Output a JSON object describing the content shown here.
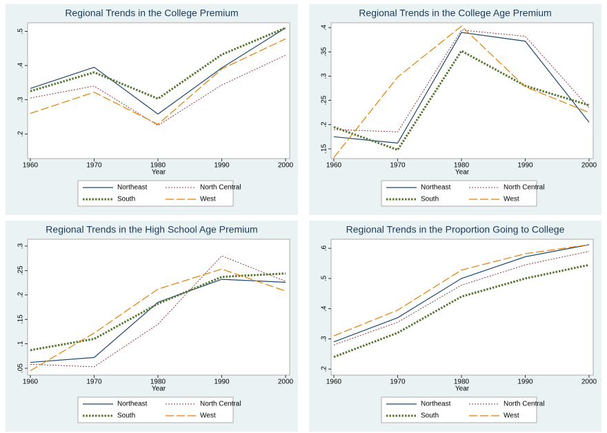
{
  "chart_data": [
    {
      "type": "line",
      "title": "Regional Trends in the College Premium",
      "x_label": "Year",
      "x": [
        1960,
        1970,
        1980,
        1990,
        2000
      ],
      "xlim": [
        1960,
        2000
      ],
      "xticks": [
        1960,
        1970,
        1980,
        1990,
        2000
      ],
      "ylim": [
        0.128,
        0.525
      ],
      "yticks": [
        {
          "value": 0.2,
          "label": ".2"
        },
        {
          "value": 0.3,
          "label": ".3"
        },
        {
          "value": 0.4,
          "label": ".4"
        },
        {
          "value": 0.5,
          "label": ".5"
        }
      ],
      "series": [
        {
          "name": "Northeast",
          "color": "#1a476f",
          "style": "solid",
          "values": [
            0.333,
            0.395,
            0.258,
            0.393,
            0.51
          ]
        },
        {
          "name": "North Central",
          "color": "#90353b",
          "style": "dot",
          "values": [
            0.305,
            0.34,
            0.225,
            0.343,
            0.43
          ]
        },
        {
          "name": "South",
          "color": "#55752f",
          "style": "heavy-dot",
          "values": [
            0.325,
            0.38,
            0.303,
            0.432,
            0.51
          ]
        },
        {
          "name": "West",
          "color": "#e37e00",
          "style": "long-dash",
          "values": [
            0.26,
            0.322,
            0.228,
            0.39,
            0.478
          ]
        }
      ]
    },
    {
      "type": "line",
      "title": "Regional Trends in the College Age Premium",
      "x_label": "Year",
      "x": [
        1960,
        1970,
        1980,
        1990,
        2000
      ],
      "xlim": [
        1960,
        2000
      ],
      "xticks": [
        1960,
        1970,
        1980,
        1990,
        2000
      ],
      "ylim": [
        0.13,
        0.41
      ],
      "yticks": [
        {
          "value": 0.15,
          "label": ".15"
        },
        {
          "value": 0.2,
          "label": ".2"
        },
        {
          "value": 0.25,
          "label": ".25"
        },
        {
          "value": 0.3,
          "label": ".3"
        },
        {
          "value": 0.35,
          "label": ".35"
        },
        {
          "value": 0.4,
          "label": ".4"
        }
      ],
      "series": [
        {
          "name": "Northeast",
          "color": "#1a476f",
          "style": "solid",
          "values": [
            0.175,
            0.162,
            0.39,
            0.372,
            0.205
          ]
        },
        {
          "name": "North Central",
          "color": "#90353b",
          "style": "dot",
          "values": [
            0.19,
            0.185,
            0.395,
            0.382,
            0.235
          ]
        },
        {
          "name": "South",
          "color": "#55752f",
          "style": "heavy-dot",
          "values": [
            0.195,
            0.148,
            0.352,
            0.28,
            0.24
          ]
        },
        {
          "name": "West",
          "color": "#e37e00",
          "style": "long-dash",
          "values": [
            0.132,
            0.298,
            0.403,
            0.278,
            0.225
          ]
        }
      ]
    },
    {
      "type": "line",
      "title": "Regional Trends in the High School Age Premium",
      "x_label": "Year",
      "x": [
        1960,
        1970,
        1980,
        1990,
        2000
      ],
      "xlim": [
        1960,
        2000
      ],
      "xticks": [
        1960,
        1970,
        1980,
        1990,
        2000
      ],
      "ylim": [
        0.036,
        0.314
      ],
      "yticks": [
        {
          "value": 0.05,
          "label": ".05"
        },
        {
          "value": 0.1,
          "label": ".1"
        },
        {
          "value": 0.15,
          "label": ".15"
        },
        {
          "value": 0.2,
          "label": ".2"
        },
        {
          "value": 0.25,
          "label": ".25"
        },
        {
          "value": 0.3,
          "label": ".3"
        }
      ],
      "series": [
        {
          "name": "Northeast",
          "color": "#1a476f",
          "style": "solid",
          "values": [
            0.062,
            0.072,
            0.185,
            0.232,
            0.226
          ]
        },
        {
          "name": "North Central",
          "color": "#90353b",
          "style": "dot",
          "values": [
            0.058,
            0.053,
            0.14,
            0.28,
            0.228
          ]
        },
        {
          "name": "South",
          "color": "#55752f",
          "style": "heavy-dot",
          "values": [
            0.087,
            0.11,
            0.182,
            0.237,
            0.244
          ]
        },
        {
          "name": "West",
          "color": "#e37e00",
          "style": "long-dash",
          "values": [
            0.045,
            0.122,
            0.212,
            0.253,
            0.208
          ]
        }
      ]
    },
    {
      "type": "line",
      "title": "Regional Trends in the Proportion Going to College",
      "x_label": "Year",
      "x": [
        1960,
        1970,
        1980,
        1990,
        2000
      ],
      "xlim": [
        1960,
        2000
      ],
      "xticks": [
        1960,
        1970,
        1980,
        1990,
        2000
      ],
      "ylim": [
        0.18,
        0.63
      ],
      "yticks": [
        {
          "value": 0.2,
          "label": ".2"
        },
        {
          "value": 0.3,
          "label": ".3"
        },
        {
          "value": 0.4,
          "label": ".4"
        },
        {
          "value": 0.5,
          "label": ".5"
        },
        {
          "value": 0.6,
          "label": ".6"
        }
      ],
      "series": [
        {
          "name": "Northeast",
          "color": "#1a476f",
          "style": "solid",
          "values": [
            0.29,
            0.37,
            0.5,
            0.572,
            0.612
          ]
        },
        {
          "name": "North Central",
          "color": "#90353b",
          "style": "dot",
          "values": [
            0.28,
            0.355,
            0.478,
            0.545,
            0.59
          ]
        },
        {
          "name": "South",
          "color": "#55752f",
          "style": "heavy-dot",
          "values": [
            0.24,
            0.32,
            0.44,
            0.5,
            0.545
          ]
        },
        {
          "name": "West",
          "color": "#e37e00",
          "style": "long-dash",
          "values": [
            0.31,
            0.395,
            0.528,
            0.582,
            0.612
          ]
        }
      ]
    }
  ]
}
